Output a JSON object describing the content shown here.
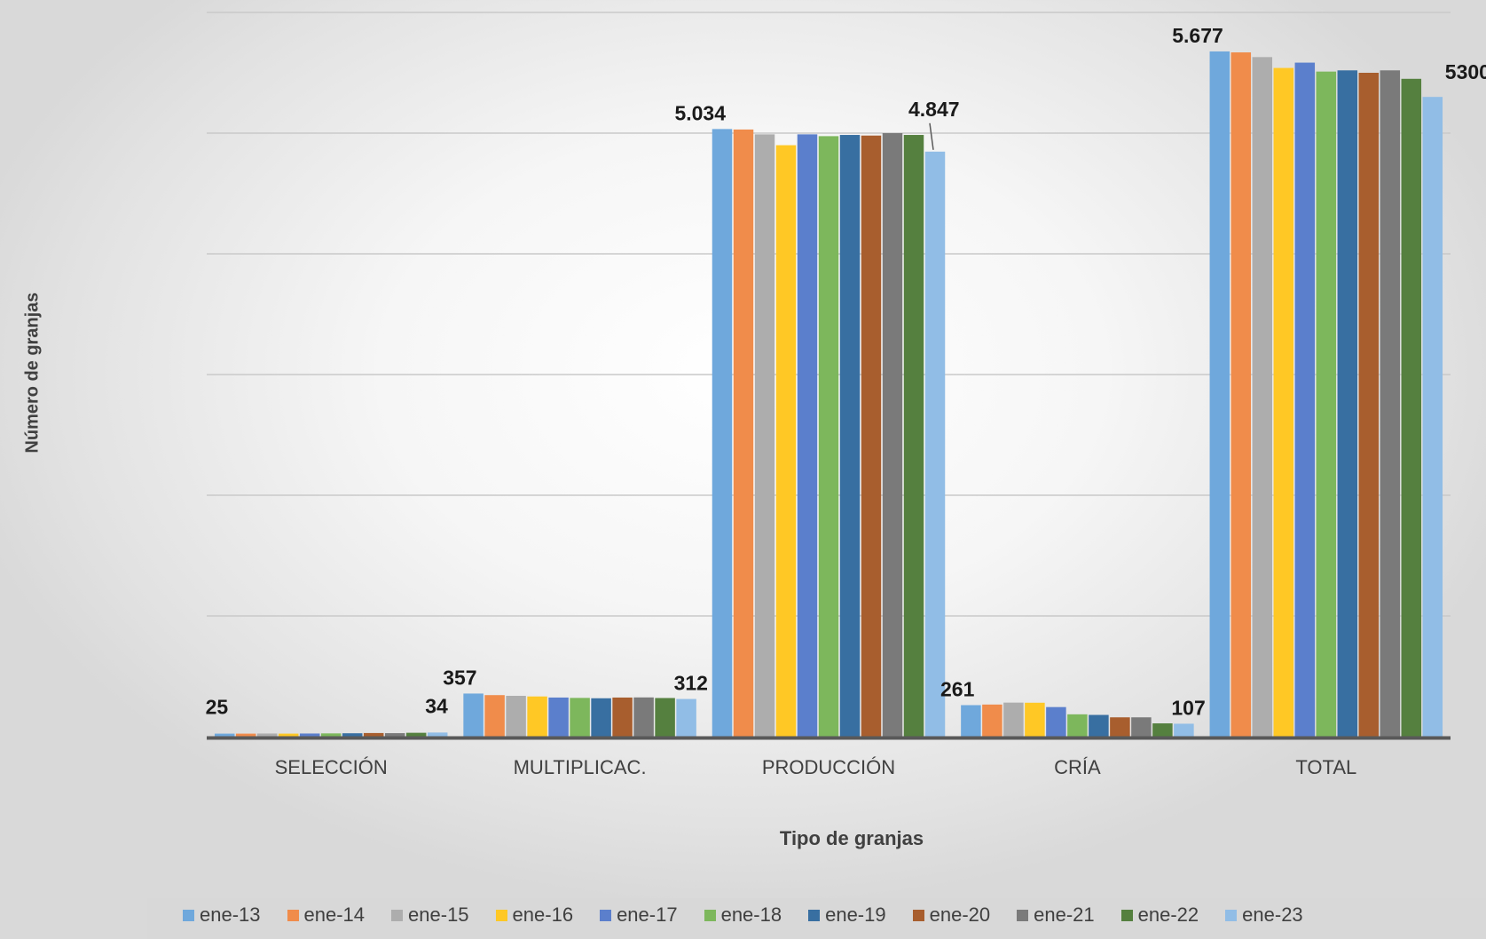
{
  "chart_data": {
    "type": "bar",
    "xlabel": "Tipo de granjas",
    "ylabel": "Número de granjas",
    "categories": [
      "SELECCIÓN",
      "MULTIPLICAC.",
      "PRODUCCIÓN",
      "CRÍA",
      "TOTAL"
    ],
    "ylim": [
      0,
      6000
    ],
    "grid": true,
    "legend_position": "bottom",
    "series": [
      {
        "name": "ene-13",
        "color": "#6fa8dc",
        "values": [
          25,
          357,
          5034,
          261,
          5677
        ]
      },
      {
        "name": "ene-14",
        "color": "#f08c4b",
        "values": [
          25,
          344,
          5030,
          266,
          5669
        ]
      },
      {
        "name": "ene-15",
        "color": "#adadad",
        "values": [
          26,
          338,
          4990,
          282,
          5630
        ]
      },
      {
        "name": "ene-16",
        "color": "#ffc825",
        "values": [
          25,
          333,
          4900,
          281,
          5540
        ]
      },
      {
        "name": "ene-17",
        "color": "#5b7fcc",
        "values": [
          26,
          324,
          4990,
          245,
          5584
        ]
      },
      {
        "name": "ene-18",
        "color": "#7db75c",
        "values": [
          27,
          321,
          4975,
          185,
          5510
        ]
      },
      {
        "name": "ene-19",
        "color": "#386fa1",
        "values": [
          28,
          318,
          4985,
          180,
          5520
        ]
      },
      {
        "name": "ene-20",
        "color": "#a85e2e",
        "values": [
          30,
          324,
          4980,
          160,
          5500
        ]
      },
      {
        "name": "ene-21",
        "color": "#7a7a7a",
        "values": [
          29,
          325,
          5000,
          160,
          5520
        ]
      },
      {
        "name": "ene-22",
        "color": "#55803f",
        "values": [
          32,
          320,
          4985,
          110,
          5450
        ]
      },
      {
        "name": "ene-23",
        "color": "#91bde6",
        "values": [
          34,
          312,
          4847,
          107,
          5300
        ]
      }
    ],
    "data_labels": [
      {
        "category": 0,
        "series": 0,
        "text": "25"
      },
      {
        "category": 0,
        "series": 10,
        "text": "34"
      },
      {
        "category": 1,
        "series": 0,
        "text": "357"
      },
      {
        "category": 1,
        "series": 10,
        "text": "312"
      },
      {
        "category": 2,
        "series": 0,
        "text": "5.034"
      },
      {
        "category": 2,
        "series": 10,
        "text": "4.847"
      },
      {
        "category": 3,
        "series": 0,
        "text": "261"
      },
      {
        "category": 3,
        "series": 10,
        "text": "107"
      },
      {
        "category": 4,
        "series": 0,
        "text": "5.677"
      },
      {
        "category": 4,
        "series": 10,
        "text": "5300"
      }
    ]
  }
}
